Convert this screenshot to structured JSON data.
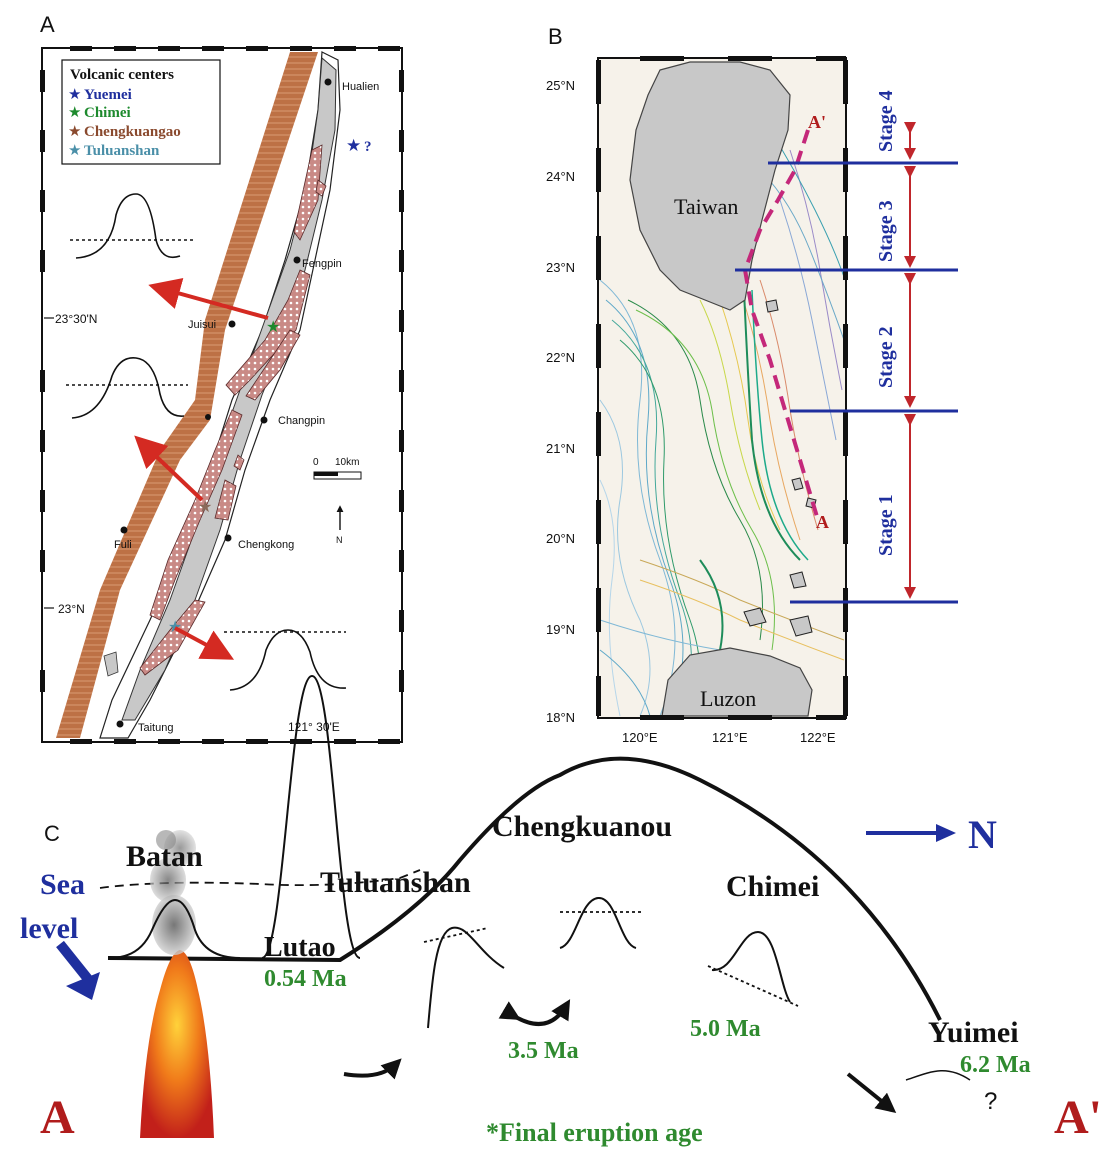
{
  "panels": {
    "a": "A",
    "b": "B",
    "c": "C"
  },
  "panel_a": {
    "legend_title": "Volcanic centers",
    "legend_items": [
      {
        "label": "Yuemei",
        "color": "#1f2f9e"
      },
      {
        "label": "Chimei",
        "color": "#1e8a2e"
      },
      {
        "label": "Chengkuangao",
        "color": "#8a4a2e"
      },
      {
        "label": "Tuluanshan",
        "color": "#4a8fa8"
      }
    ],
    "star_question": "?",
    "towns": {
      "hualien": "Hualien",
      "fengpin": "Fengpin",
      "juisui": "Juisui",
      "changpin": "Changpin",
      "fuli": "Fuli",
      "chengkong": "Chengkong",
      "taitung": "Taitung"
    },
    "lat_2330": "23°30'N",
    "lat_23": "23°N",
    "lon_12130": "121° 30'E",
    "scale_0": "0",
    "scale_10": "10km",
    "north": "N"
  },
  "panel_b": {
    "lat_labels": [
      "25°N",
      "24°N",
      "23°N",
      "22°N",
      "21°N",
      "20°N",
      "19°N",
      "18°N"
    ],
    "lon_labels": [
      "120°E",
      "121°E",
      "122°E"
    ],
    "taiwan": "Taiwan",
    "luzon": "Luzon",
    "a_label": "A",
    "a_prime_label": "A'",
    "stages": [
      "Stage 4",
      "Stage 3",
      "Stage 2",
      "Stage 1"
    ]
  },
  "panel_c": {
    "batan": "Batan",
    "sea": "Sea",
    "level": "level",
    "lutao": "Lutao",
    "lutao_age": "0.54 Ma",
    "tuluanshan": "Tuluanshan",
    "chengkuanou": "Chengkuanou",
    "chimei": "Chimei",
    "age_35": "3.5 Ma",
    "age_50": "5.0 Ma",
    "yuimei": "Yuimei",
    "yuimei_age": "6.2 Ma",
    "question": "?",
    "north": "N",
    "a": "A",
    "a_prime": "A'",
    "footnote": "*Final eruption age"
  },
  "colors": {
    "navy": "#1f2f9e",
    "green_age": "#2f8a2f",
    "red_arrow": "#d42a22",
    "dark_red": "#b01c1c",
    "stripe_brown": "#b8683e",
    "land_grey": "#c8c8c8"
  }
}
